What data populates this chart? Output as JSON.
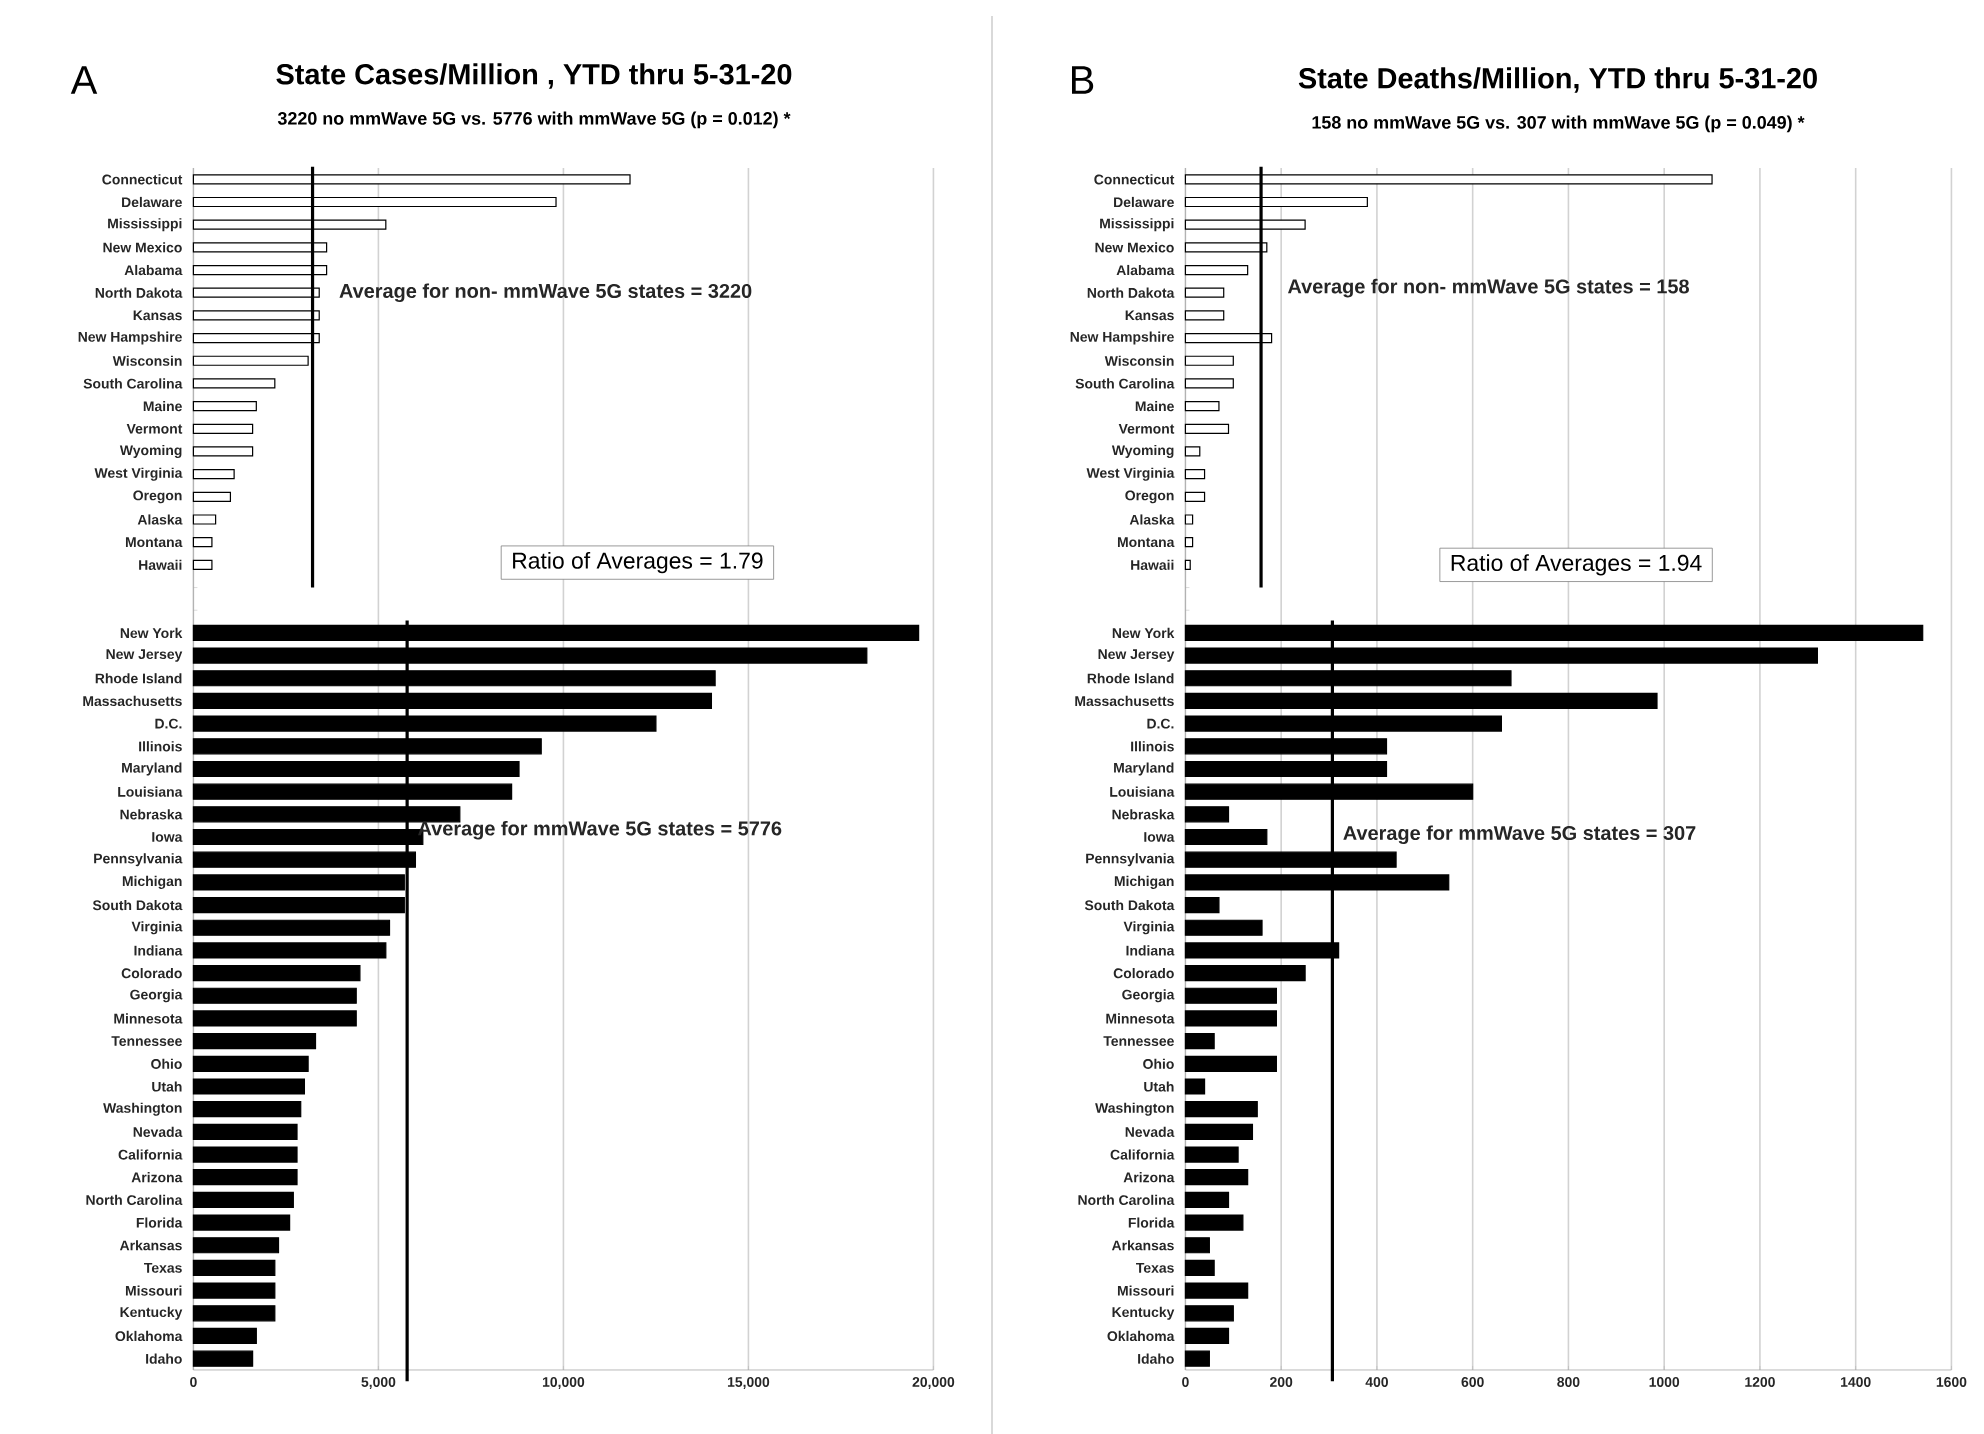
{
  "chart_data": [
    {
      "type": "bar",
      "orientation": "horizontal",
      "title": "State Cases/Million , YTD thru 5-31-20",
      "subtitle": "3220 no mmWave 5G vs. 5776 with mmWave 5G (p = 0.012) *",
      "categories": [
        "Connecticut",
        "Delaware",
        "Mississippi",
        "New Mexico",
        "Alabama",
        "North Dakota",
        "Kansas",
        "New Hampshire",
        "Wisconsin",
        "South Carolina",
        "Maine",
        "Vermont",
        "Wyoming",
        "West Virginia",
        "Oregon",
        "Alaska",
        "Montana",
        "Hawaii",
        null,
        null,
        "New York",
        "New Jersey",
        "Rhode Island",
        "Massachusetts",
        "D.C.",
        "Illinois",
        "Maryland",
        "Louisiana",
        "Nebraska",
        "Iowa",
        "Pennsylvania",
        "Michigan",
        "South Dakota",
        "Virginia",
        "Indiana",
        "Colorado",
        "Georgia",
        "Minnesota",
        "Tennessee",
        "Ohio",
        "Utah",
        "Washington",
        "Nevada",
        "California",
        "Arizona",
        "North Carolina",
        "Florida",
        "Arkansas",
        "Texas",
        "Missouri",
        "Kentucky",
        "Oklahoma",
        "Idaho"
      ],
      "series": [
        {
          "color": "#ffffff",
          "values": [
            11800,
            9800,
            5200,
            3600,
            3600,
            3400,
            3400,
            3400,
            3100,
            2200,
            1700,
            1600,
            1600,
            1100,
            1000,
            600,
            500,
            500,
            null,
            null,
            null,
            null,
            null,
            null,
            null,
            null,
            null,
            null,
            null,
            null,
            null,
            null,
            null,
            null,
            null,
            null,
            null,
            null,
            null,
            null,
            null,
            null,
            null,
            null,
            null,
            null,
            null,
            null,
            null,
            null,
            null,
            null,
            null
          ]
        },
        {
          "color": "#000000",
          "values": [
            null,
            null,
            null,
            null,
            null,
            null,
            null,
            null,
            null,
            null,
            null,
            null,
            null,
            null,
            null,
            null,
            null,
            null,
            null,
            null,
            19600,
            18200,
            14100,
            14000,
            12500,
            9400,
            8800,
            8600,
            7200,
            6200,
            6000,
            5700,
            5700,
            5300,
            5200,
            4500,
            4400,
            4400,
            3300,
            3100,
            3000,
            2900,
            2800,
            2800,
            2800,
            2700,
            2600,
            2300,
            2200,
            2200,
            2200,
            1700,
            1600
          ]
        }
      ],
      "xlim": [
        0,
        20000
      ],
      "xticks": [
        0,
        {
          "value": 5000,
          "label": "5,000"
        },
        {
          "value": 10000,
          "label": "10,000"
        },
        {
          "value": 15000,
          "label": "15,000"
        },
        {
          "value": 20000,
          "label": "20,000"
        }
      ],
      "grid": "x",
      "ref_lines": [
        {
          "axis": "x",
          "value": 3220,
          "label": "Average for non- mmWave 5G states =  3220"
        },
        {
          "axis": "x",
          "value": 5776,
          "label": "Average for mmWave 5G states = 5776"
        }
      ],
      "annotations": [
        "A",
        "Ratio of Averages =  1.79"
      ]
    },
    {
      "type": "bar",
      "orientation": "horizontal",
      "title": "State Deaths/Million, YTD thru 5-31-20",
      "subtitle": "158 no mmWave 5G vs. 307 with mmWave  5G (p = 0.049) *",
      "categories": [
        "Connecticut",
        "Delaware",
        "Mississippi",
        "New Mexico",
        "Alabama",
        "North Dakota",
        "Kansas",
        "New Hampshire",
        "Wisconsin",
        "South Carolina",
        "Maine",
        "Vermont",
        "Wyoming",
        "West Virginia",
        "Oregon",
        "Alaska",
        "Montana",
        "Hawaii",
        null,
        null,
        "New York",
        "New Jersey",
        "Rhode Island",
        "Massachusetts",
        "D.C.",
        "Illinois",
        "Maryland",
        "Louisiana",
        "Nebraska",
        "Iowa",
        "Pennsylvania",
        "Michigan",
        "South Dakota",
        "Virginia",
        "Indiana",
        "Colorado",
        "Georgia",
        "Minnesota",
        "Tennessee",
        "Ohio",
        "Utah",
        "Washington",
        "Nevada",
        "California",
        "Arizona",
        "North Carolina",
        "Florida",
        "Arkansas",
        "Texas",
        "Missouri",
        "Kentucky",
        "Oklahoma",
        "Idaho"
      ],
      "series": [
        {
          "color": "#ffffff",
          "values": [
            1100,
            380,
            250,
            170,
            130,
            80,
            80,
            180,
            100,
            100,
            70,
            90,
            30,
            40,
            40,
            15,
            15,
            10,
            null,
            null,
            null,
            null,
            null,
            null,
            null,
            null,
            null,
            null,
            null,
            null,
            null,
            null,
            null,
            null,
            null,
            null,
            null,
            null,
            null,
            null,
            null,
            null,
            null,
            null,
            null,
            null,
            null,
            null,
            null,
            null,
            null,
            null,
            null
          ]
        },
        {
          "color": "#000000",
          "values": [
            null,
            null,
            null,
            null,
            null,
            null,
            null,
            null,
            null,
            null,
            null,
            null,
            null,
            null,
            null,
            null,
            null,
            null,
            null,
            null,
            1540,
            1320,
            680,
            985,
            660,
            420,
            420,
            600,
            90,
            170,
            440,
            550,
            70,
            160,
            320,
            250,
            190,
            190,
            60,
            190,
            40,
            150,
            140,
            110,
            130,
            90,
            120,
            50,
            60,
            130,
            100,
            90,
            50
          ]
        }
      ],
      "xlim": [
        0,
        1600
      ],
      "xticks": [
        0,
        200,
        400,
        600,
        800,
        1000,
        1200,
        1400,
        1600
      ],
      "grid": "x",
      "ref_lines": [
        {
          "axis": "x",
          "value": 158,
          "label": "Average for non- mmWave 5G states =  158"
        },
        {
          "axis": "x",
          "value": 307,
          "label": "Average for mmWave 5G states = 307"
        }
      ],
      "annotations": [
        "B",
        "Ratio of Averages =  1.94"
      ]
    }
  ]
}
